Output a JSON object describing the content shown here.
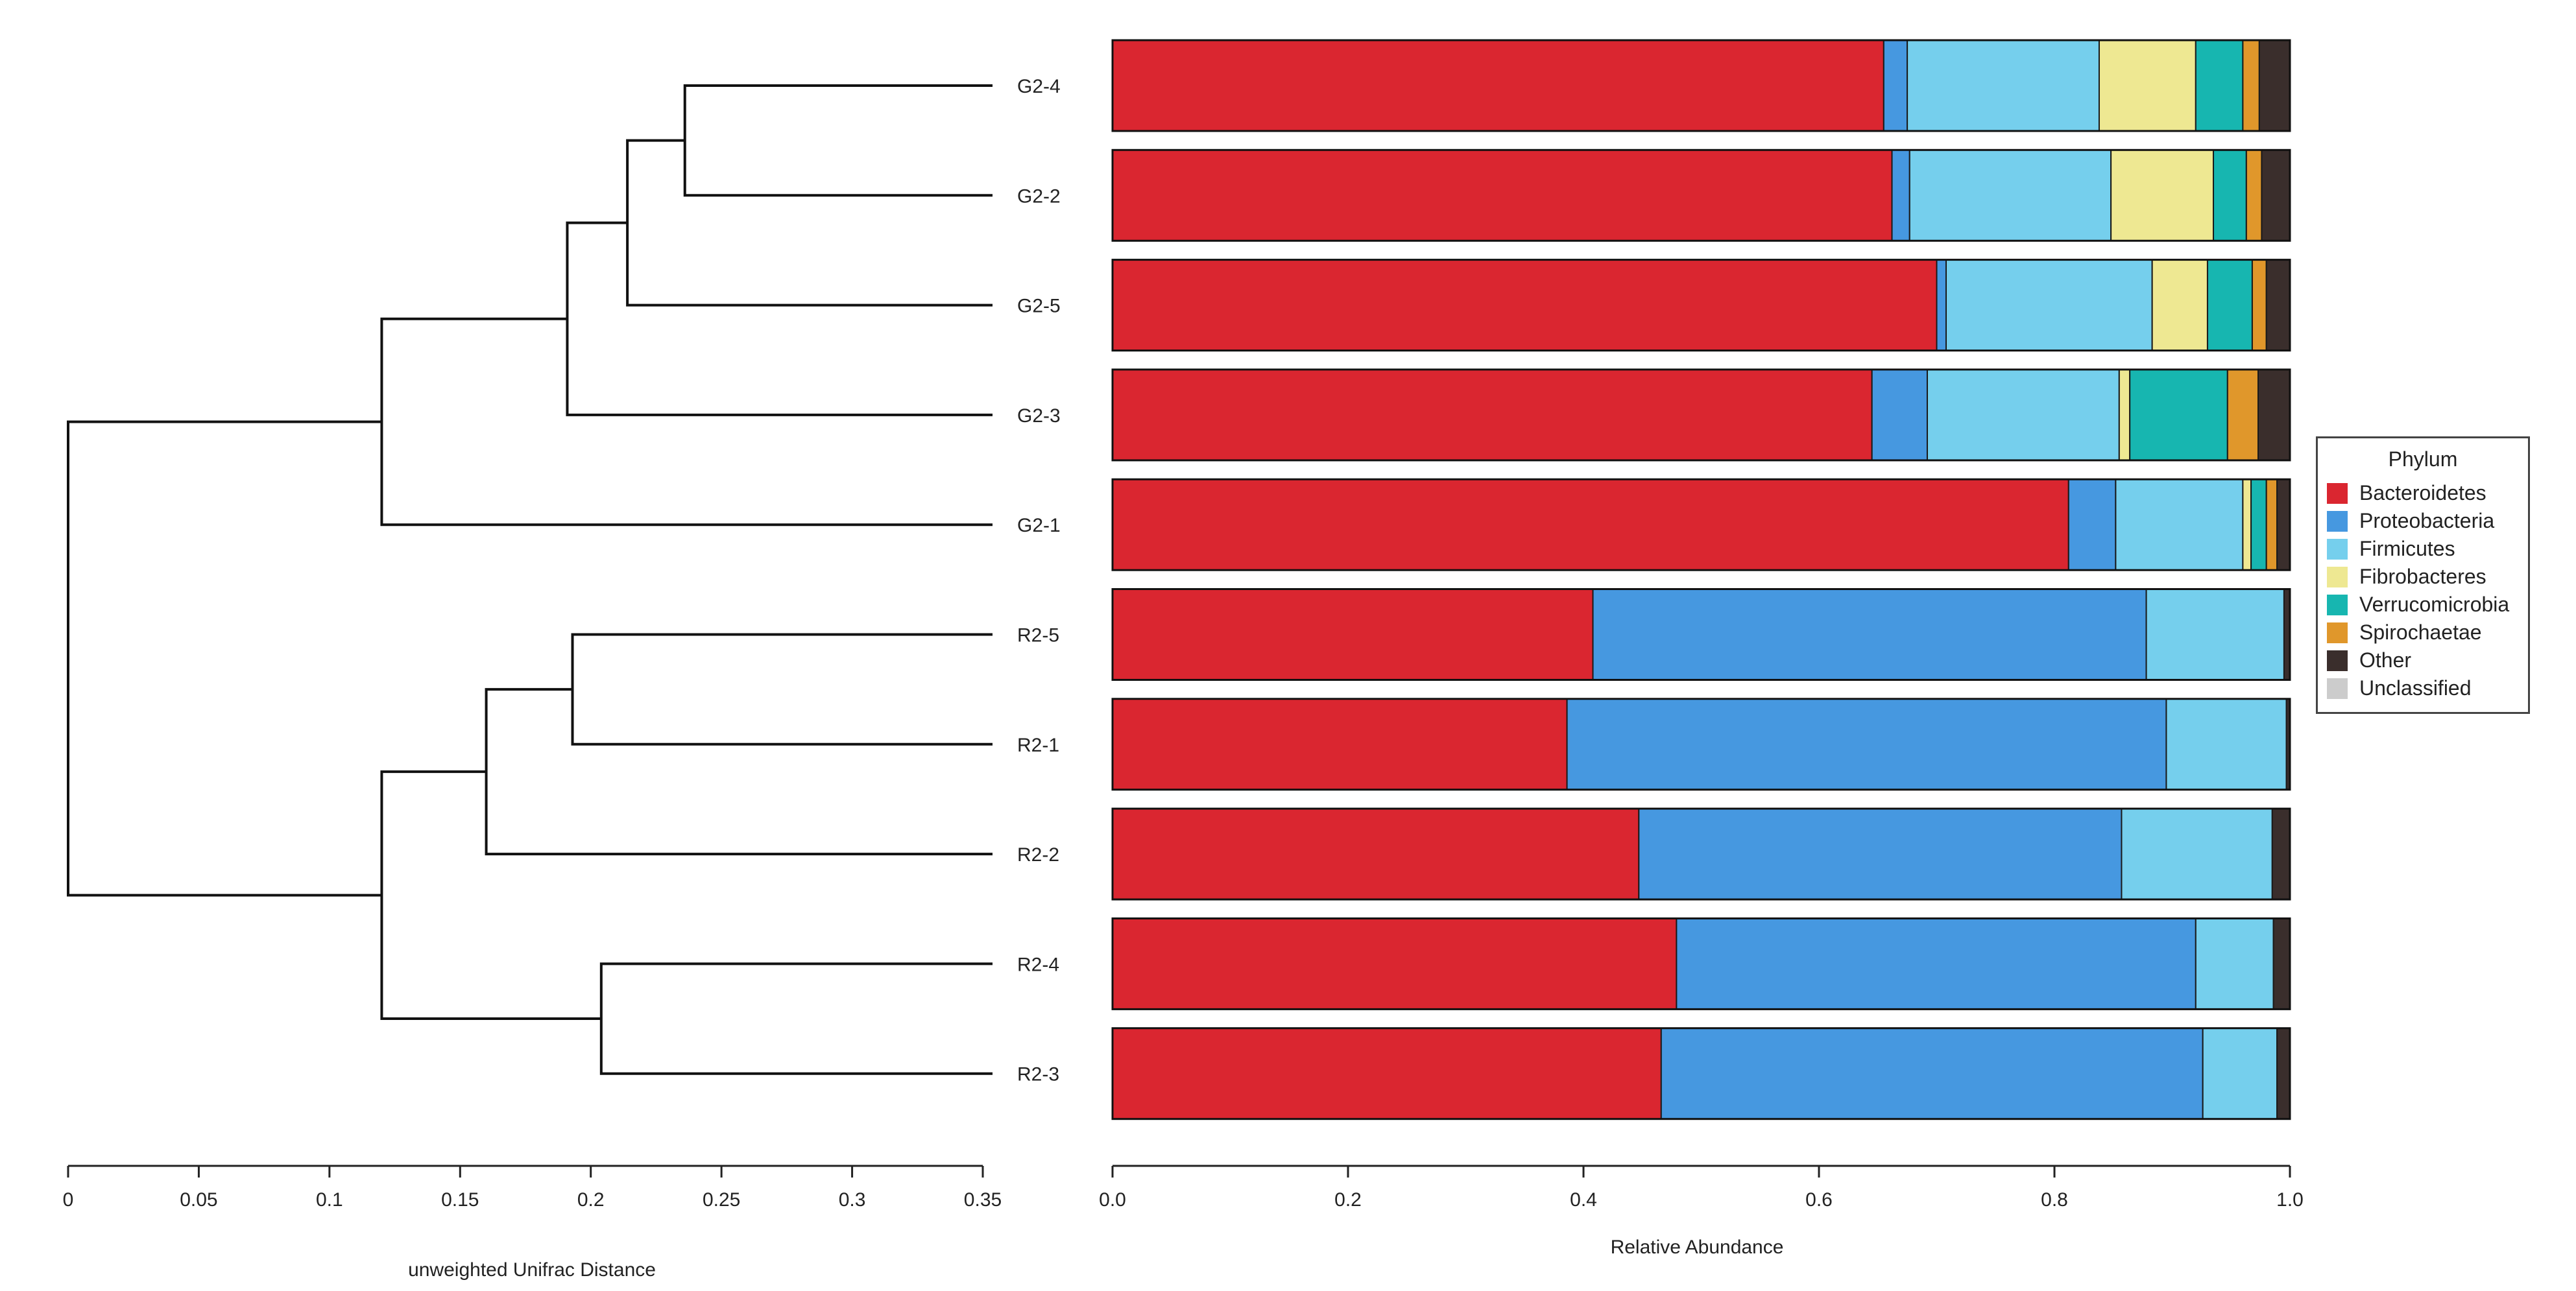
{
  "chart_data": [
    {
      "type": "dendrogram",
      "xlabel": "unweighted Unifrac Distance",
      "xlim": [
        0,
        0.35
      ],
      "ticks": [
        0,
        0.05,
        0.1,
        0.15,
        0.2,
        0.25,
        0.3,
        0.35
      ],
      "tick_labels": [
        "0",
        "0.05",
        "0.1",
        "0.15",
        "0.2",
        "0.25",
        "0.3",
        "0.35"
      ],
      "leaves": [
        "G2-4",
        "G2-2",
        "G2-5",
        "G2-3",
        "G2-1",
        "R2-5",
        "R2-1",
        "R2-2",
        "R2-4",
        "R2-3"
      ],
      "merges": [
        {
          "a": "G2-4",
          "b": "G2-2",
          "height": 0.236
        },
        {
          "a": "m1",
          "b": "G2-5",
          "height": 0.214
        },
        {
          "a": "m2",
          "b": "G2-3",
          "height": 0.191
        },
        {
          "a": "m3",
          "b": "G2-1",
          "height": 0.12
        },
        {
          "a": "R2-5",
          "b": "R2-1",
          "height": 0.193
        },
        {
          "a": "m5",
          "b": "R2-2",
          "height": 0.16
        },
        {
          "a": "R2-4",
          "b": "R2-3",
          "height": 0.204
        },
        {
          "a": "m6",
          "b": "m7",
          "height": 0.12
        },
        {
          "a": "m4",
          "b": "m8",
          "height": 0
        }
      ]
    },
    {
      "type": "bar",
      "orientation": "horizontal",
      "stacked": true,
      "xlabel": "Relative Abundance",
      "xlim": [
        0,
        1
      ],
      "ticks": [
        0,
        0.2,
        0.4,
        0.6,
        0.8,
        1
      ],
      "tick_labels": [
        "0.0",
        "0.2",
        "0.4",
        "0.6",
        "0.8",
        "1.0"
      ],
      "categories": [
        "G2-4",
        "G2-2",
        "G2-5",
        "G2-3",
        "G2-1",
        "R2-5",
        "R2-1",
        "R2-2",
        "R2-4",
        "R2-3"
      ],
      "series": [
        {
          "name": "Bacteroidetes",
          "values": [
            0.655,
            0.662,
            0.7,
            0.645,
            0.812,
            0.408,
            0.386,
            0.447,
            0.479,
            0.466
          ]
        },
        {
          "name": "Proteobacteria",
          "values": [
            0.02,
            0.015,
            0.008,
            0.047,
            0.04,
            0.47,
            0.509,
            0.41,
            0.441,
            0.46
          ]
        },
        {
          "name": "Firmicutes",
          "values": [
            0.163,
            0.171,
            0.175,
            0.163,
            0.108,
            0.117,
            0.102,
            0.128,
            0.066,
            0.063
          ]
        },
        {
          "name": "Fibrobacteres",
          "values": [
            0.082,
            0.087,
            0.047,
            0.009,
            0.007,
            0,
            0,
            0,
            0,
            0
          ]
        },
        {
          "name": "Verrucomicrobia",
          "values": [
            0.04,
            0.028,
            0.038,
            0.083,
            0.013,
            0,
            0,
            0,
            0,
            0
          ]
        },
        {
          "name": "Spirochaetae",
          "values": [
            0.014,
            0.013,
            0.012,
            0.026,
            0.009,
            0,
            0,
            0,
            0,
            0
          ]
        },
        {
          "name": "Other",
          "values": [
            0.026,
            0.024,
            0.02,
            0.027,
            0.011,
            0.005,
            0.003,
            0.015,
            0.014,
            0.011
          ]
        },
        {
          "name": "Unclassified",
          "values": [
            0,
            0,
            0,
            0,
            0,
            0,
            0,
            0,
            0,
            0
          ]
        }
      ],
      "colors": [
        "#da2630",
        "#4698e0",
        "#75cfed",
        "#eee892",
        "#17b6b0",
        "#e0972b",
        "#3a2e2c",
        "#cccccc"
      ]
    }
  ],
  "legend": {
    "title": "Phylum",
    "items": [
      {
        "label": "Bacteroidetes",
        "color": "#da2630"
      },
      {
        "label": "Proteobacteria",
        "color": "#4698e0"
      },
      {
        "label": "Firmicutes",
        "color": "#75cfed"
      },
      {
        "label": "Fibrobacteres",
        "color": "#eee892"
      },
      {
        "label": "Verrucomicrobia",
        "color": "#17b6b0"
      },
      {
        "label": "Spirochaetae",
        "color": "#e0972b"
      },
      {
        "label": "Other",
        "color": "#3a2e2c"
      },
      {
        "label": "Unclassified",
        "color": "#cccccc"
      }
    ]
  }
}
